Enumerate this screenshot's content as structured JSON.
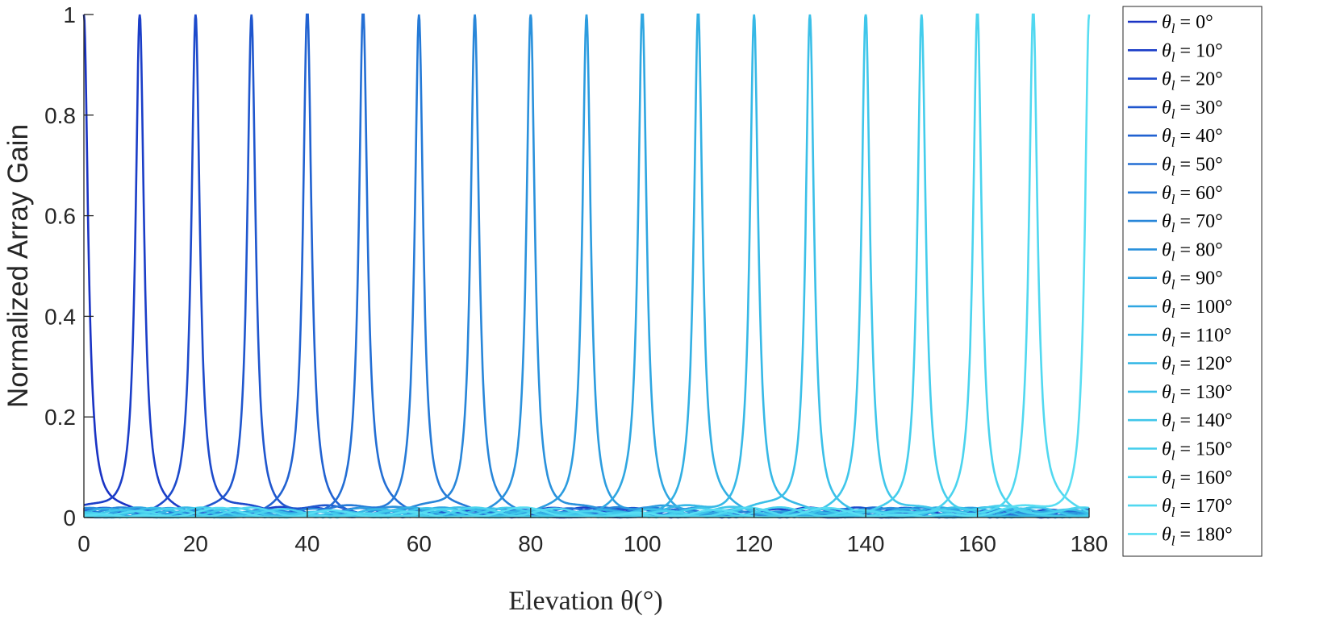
{
  "chart_data": {
    "type": "line",
    "title": "",
    "xlabel": "Elevation θ(°)",
    "ylabel": "Normalized Array Gain",
    "xlim": [
      0,
      180
    ],
    "ylim": [
      0,
      1
    ],
    "xticks": [
      0,
      20,
      40,
      60,
      80,
      100,
      120,
      140,
      160,
      180
    ],
    "yticks": [
      0,
      0.2,
      0.4,
      0.6,
      0.8,
      1
    ],
    "ytick_labels": [
      "0",
      "0.2",
      "0.4",
      "0.6",
      "0.8",
      "1"
    ],
    "grid": false,
    "legend_position": "outside-right",
    "series": [
      {
        "name": "θl = 0°",
        "steer": 0,
        "color": "#1a33c4"
      },
      {
        "name": "θl = 10°",
        "steer": 10,
        "color": "#1b3ec8"
      },
      {
        "name": "θl = 20°",
        "steer": 20,
        "color": "#1d4acb"
      },
      {
        "name": "θl = 30°",
        "steer": 30,
        "color": "#1f56ce"
      },
      {
        "name": "θl = 40°",
        "steer": 40,
        "color": "#2162d1"
      },
      {
        "name": "θl = 50°",
        "steer": 50,
        "color": "#236ed4"
      },
      {
        "name": "θl = 60°",
        "steer": 60,
        "color": "#257ad7"
      },
      {
        "name": "θl = 70°",
        "steer": 70,
        "color": "#2886d9"
      },
      {
        "name": "θl = 80°",
        "steer": 80,
        "color": "#2a91dc"
      },
      {
        "name": "θl = 90°",
        "steer": 90,
        "color": "#2c9cdf"
      },
      {
        "name": "θl = 100°",
        "steer": 100,
        "color": "#2fa6e1"
      },
      {
        "name": "θl = 110°",
        "steer": 110,
        "color": "#32afe3"
      },
      {
        "name": "θl = 120°",
        "steer": 120,
        "color": "#36b8e6"
      },
      {
        "name": "θl = 130°",
        "steer": 130,
        "color": "#3abfe8"
      },
      {
        "name": "θl = 140°",
        "steer": 140,
        "color": "#3fc6ea"
      },
      {
        "name": "θl = 150°",
        "steer": 150,
        "color": "#44cdec"
      },
      {
        "name": "θl = 160°",
        "steer": 160,
        "color": "#4ad3ee"
      },
      {
        "name": "θl = 170°",
        "steer": 170,
        "color": "#51d8f0"
      },
      {
        "name": "θl = 180°",
        "steer": 180,
        "color": "#58ddf2"
      }
    ],
    "curve": {
      "peak_value": 1,
      "half_width_deg": 0.9,
      "sidelobe_level": 0.02
    }
  }
}
